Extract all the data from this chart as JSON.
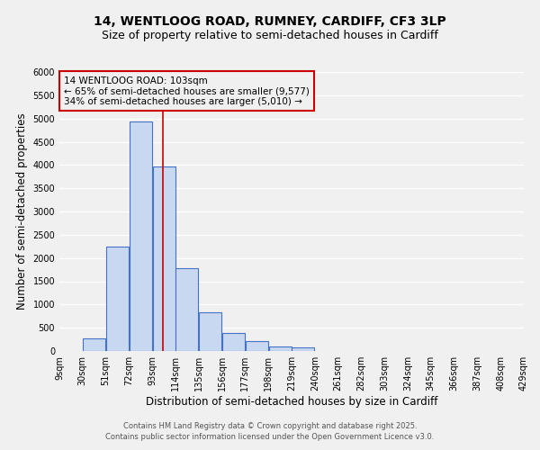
{
  "title_line1": "14, WENTLOOG ROAD, RUMNEY, CARDIFF, CF3 3LP",
  "title_line2": "Size of property relative to semi-detached houses in Cardiff",
  "xlabel": "Distribution of semi-detached houses by size in Cardiff",
  "ylabel": "Number of semi-detached properties",
  "bar_left_edges": [
    9,
    30,
    51,
    72,
    93,
    114,
    135,
    156,
    177,
    198,
    219,
    240,
    261,
    282,
    303,
    324,
    345,
    366,
    387,
    408
  ],
  "bar_heights": [
    0,
    270,
    2250,
    4930,
    3960,
    1790,
    840,
    390,
    210,
    100,
    70,
    0,
    0,
    0,
    0,
    0,
    0,
    0,
    0,
    0
  ],
  "bin_width": 21,
  "bar_face_color": "#c8d8f0",
  "bar_edge_color": "#4472c4",
  "property_line_x": 103,
  "property_line_color": "#cc0000",
  "annotation_title": "14 WENTLOOG ROAD: 103sqm",
  "annotation_line1": "← 65% of semi-detached houses are smaller (9,577)",
  "annotation_line2": "34% of semi-detached houses are larger (5,010) →",
  "annotation_box_color": "#cc0000",
  "tick_labels": [
    "9sqm",
    "30sqm",
    "51sqm",
    "72sqm",
    "93sqm",
    "114sqm",
    "135sqm",
    "156sqm",
    "177sqm",
    "198sqm",
    "219sqm",
    "240sqm",
    "261sqm",
    "282sqm",
    "303sqm",
    "324sqm",
    "345sqm",
    "366sqm",
    "387sqm",
    "408sqm",
    "429sqm"
  ],
  "tick_positions": [
    9,
    30,
    51,
    72,
    93,
    114,
    135,
    156,
    177,
    198,
    219,
    240,
    261,
    282,
    303,
    324,
    345,
    366,
    387,
    408,
    429
  ],
  "ylim": [
    0,
    6000
  ],
  "xlim": [
    9,
    429
  ],
  "yticks": [
    0,
    500,
    1000,
    1500,
    2000,
    2500,
    3000,
    3500,
    4000,
    4500,
    5000,
    5500,
    6000
  ],
  "footer_line1": "Contains HM Land Registry data © Crown copyright and database right 2025.",
  "footer_line2": "Contains public sector information licensed under the Open Government Licence v3.0.",
  "bg_color": "#f0f0f0",
  "grid_color": "#ffffff",
  "title_fontsize": 10,
  "subtitle_fontsize": 9,
  "axis_label_fontsize": 8.5,
  "tick_fontsize": 7,
  "footer_fontsize": 6,
  "annotation_fontsize": 7.5
}
